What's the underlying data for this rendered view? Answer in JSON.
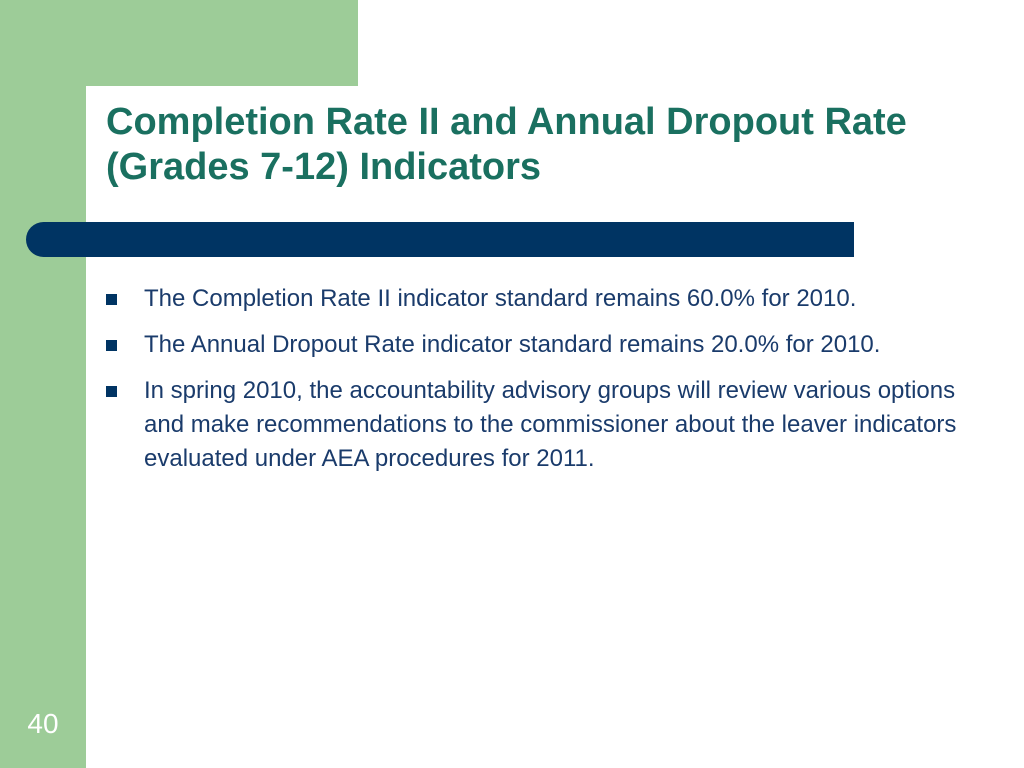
{
  "slide": {
    "title": "Completion Rate II and Annual Dropout Rate (Grades 7-12) Indicators",
    "bullets": [
      {
        "text": "The Completion Rate II indicator standard remains 60.0% for 2010."
      },
      {
        "text": "The Annual Dropout Rate indicator standard remains 20.0% for 2010."
      },
      {
        "text": "In spring 2010, the accountability advisory groups will review various options and make recommendations to the commissioner about the leaver indicators evaluated under AEA procedures for 2011."
      }
    ],
    "page_number": "40"
  },
  "colors": {
    "green_accent": "#9dcc98",
    "title": "#1a7060",
    "bar": "#003463",
    "body_text": "#1a3b6b"
  },
  "icons": {
    "bullet": "square-bullet-icon"
  }
}
